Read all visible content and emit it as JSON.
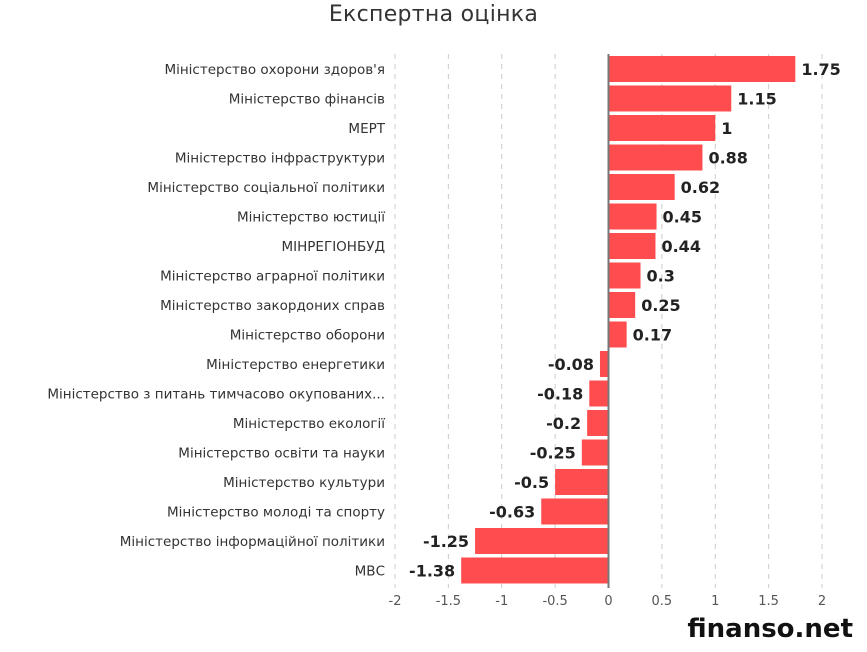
{
  "chart_data": {
    "type": "bar",
    "orientation": "horizontal",
    "title": "Експертна оцінка",
    "xlabel": "",
    "ylabel": "",
    "xlim": [
      -2,
      2
    ],
    "xticks": [
      -2,
      -1.5,
      -1,
      -0.5,
      0,
      0.5,
      1,
      1.5,
      2
    ],
    "tick_labels": [
      "-2",
      "-1.5",
      "-1",
      "-0.5",
      "0",
      "0.5",
      "1",
      "1.5",
      "2"
    ],
    "grid": true,
    "bar_color": "#ff4d4f",
    "categories": [
      "Міністерство охорони здоров'я",
      "Міністерство фінансів",
      "МЕРТ",
      "Міністерство інфраструктури",
      "Міністерство соціальної політики",
      "Міністерство юстиції",
      "МІНРЕГІОНБУД",
      "Міністерство аграрної політики",
      "Міністерство закордоних справ",
      "Міністерство оборони",
      "Міністерство енергетики",
      "Міністерство з питань тимчасово окупованих...",
      "Міністерство екології",
      "Міністерство освіти та науки",
      "Міністерство культури",
      "Міністерство молоді та спорту",
      "Міністерство інформаційної політики",
      "МВС"
    ],
    "values": [
      1.75,
      1.15,
      1,
      0.88,
      0.62,
      0.45,
      0.44,
      0.3,
      0.25,
      0.17,
      -0.08,
      -0.18,
      -0.2,
      -0.25,
      -0.5,
      -0.63,
      -1.25,
      -1.38
    ],
    "value_labels": [
      "1.75",
      "1.15",
      "1",
      "0.88",
      "0.62",
      "0.45",
      "0.44",
      "0.3",
      "0.25",
      "0.17",
      "-0.08",
      "-0.18",
      "-0.2",
      "-0.25",
      "-0.5",
      "-0.63",
      "-1.25",
      "-1.38"
    ]
  },
  "watermark": "finanso.net"
}
